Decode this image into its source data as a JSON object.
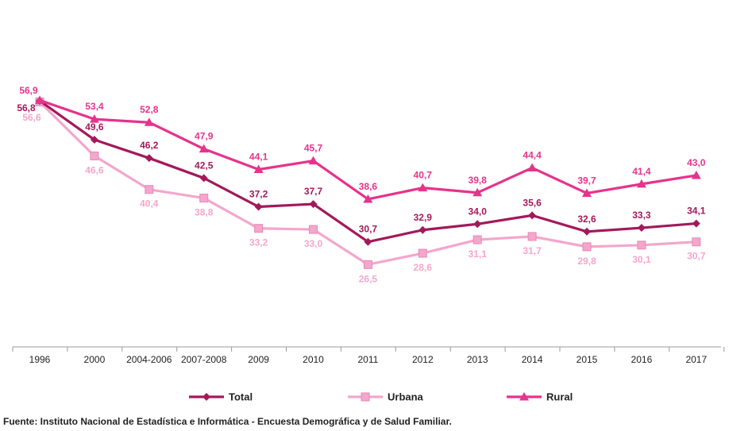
{
  "chart_data": {
    "type": "line",
    "title": "",
    "xlabel": "",
    "ylabel": "",
    "ylim": [
      0,
      65
    ],
    "grid": false,
    "legend_position": "bottom",
    "categories": [
      "1996",
      "2000",
      "2004-2006",
      "2007-2008",
      "2009",
      "2010",
      "2011",
      "2012",
      "2013",
      "2014",
      "2015",
      "2016",
      "2017"
    ],
    "series": [
      {
        "name": "Total",
        "color": "#a3195b",
        "marker": "diamond",
        "values": [
          56.8,
          49.6,
          46.2,
          42.5,
          37.2,
          37.7,
          30.7,
          32.9,
          34.0,
          35.6,
          32.6,
          33.3,
          34.1
        ],
        "labels": [
          "56,8",
          "49,6",
          "46,2",
          "42,5",
          "37,2",
          "37,7",
          "30,7",
          "32,9",
          "34,0",
          "35,6",
          "32,6",
          "33,3",
          "34,1"
        ]
      },
      {
        "name": "Urbana",
        "color": "#f4a6cc",
        "marker": "square",
        "values": [
          56.6,
          46.6,
          40.4,
          38.8,
          33.2,
          33.0,
          26.5,
          28.6,
          31.1,
          31.7,
          29.8,
          30.1,
          30.7
        ],
        "labels": [
          "56,6",
          "46,6",
          "40,4",
          "38,8",
          "33,2",
          "33,0",
          "26,5",
          "28,6",
          "31,1",
          "31,7",
          "29,8",
          "30,1",
          "30,7"
        ]
      },
      {
        "name": "Rural",
        "color": "#e6338c",
        "marker": "triangle",
        "values": [
          56.9,
          53.4,
          52.8,
          47.9,
          44.1,
          45.7,
          38.6,
          40.7,
          39.8,
          44.4,
          39.7,
          41.4,
          43.0
        ],
        "labels": [
          "56,9",
          "53,4",
          "52,8",
          "47,9",
          "44,1",
          "45,7",
          "38,6",
          "40,7",
          "39,8",
          "44,4",
          "39,7",
          "41,4",
          "43,0"
        ]
      }
    ]
  },
  "source_note": "Fuente: Instituto Nacional de Estadística e Informática - Encuesta Demográfica y de Salud Familiar."
}
